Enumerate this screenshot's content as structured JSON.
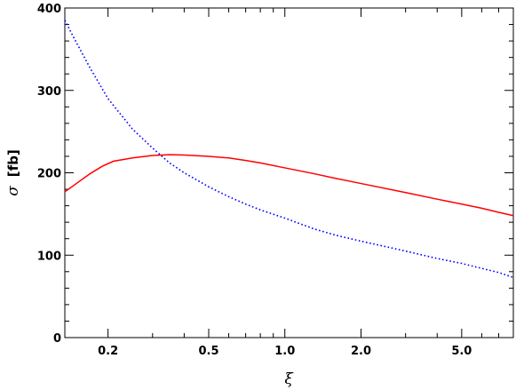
{
  "chart_data": {
    "type": "line",
    "xlabel": "ξ",
    "ylabel_symbol": "σ",
    "ylabel_unit": "[fb]",
    "xscale": "log",
    "xlim": [
      0.135,
      8.0
    ],
    "ylim": [
      0,
      400
    ],
    "grid": false,
    "x_ticks": [
      {
        "value": 0.2,
        "label": "0.2"
      },
      {
        "value": 0.5,
        "label": "0.5"
      },
      {
        "value": 1.0,
        "label": "1.0"
      },
      {
        "value": 2.0,
        "label": "2.0"
      },
      {
        "value": 5.0,
        "label": "5.0"
      }
    ],
    "x_minor_ticks": [
      0.3,
      0.4,
      0.6,
      0.7,
      0.8,
      0.9,
      3,
      4,
      6,
      7,
      8
    ],
    "y_ticks": [
      {
        "value": 0,
        "label": "0"
      },
      {
        "value": 100,
        "label": "100"
      },
      {
        "value": 200,
        "label": "200"
      },
      {
        "value": 300,
        "label": "300"
      },
      {
        "value": 400,
        "label": "400"
      }
    ],
    "y_minor_step": 20,
    "series": [
      {
        "color": "#ff0000",
        "style": "solid",
        "points": [
          [
            0.135,
            177
          ],
          [
            0.15,
            187
          ],
          [
            0.17,
            199
          ],
          [
            0.19,
            208
          ],
          [
            0.21,
            214
          ],
          [
            0.25,
            218
          ],
          [
            0.3,
            221
          ],
          [
            0.35,
            222
          ],
          [
            0.4,
            221.5
          ],
          [
            0.5,
            220
          ],
          [
            0.6,
            218
          ],
          [
            0.7,
            215
          ],
          [
            0.8,
            212
          ],
          [
            1.0,
            206
          ],
          [
            1.3,
            199
          ],
          [
            1.6,
            193
          ],
          [
            2.0,
            187
          ],
          [
            3.0,
            176
          ],
          [
            4.0,
            168
          ],
          [
            5.0,
            162
          ],
          [
            6.0,
            157
          ],
          [
            7.0,
            152
          ],
          [
            8.0,
            148
          ]
        ]
      },
      {
        "color": "#0000ff",
        "style": "dotted",
        "points": [
          [
            0.135,
            385
          ],
          [
            0.15,
            358
          ],
          [
            0.17,
            327
          ],
          [
            0.2,
            290
          ],
          [
            0.25,
            253
          ],
          [
            0.3,
            230
          ],
          [
            0.35,
            212
          ],
          [
            0.4,
            200
          ],
          [
            0.5,
            183
          ],
          [
            0.6,
            171
          ],
          [
            0.7,
            162
          ],
          [
            0.8,
            155
          ],
          [
            1.0,
            145
          ],
          [
            1.3,
            132
          ],
          [
            1.6,
            124
          ],
          [
            2.0,
            117
          ],
          [
            3.0,
            105
          ],
          [
            4.0,
            96
          ],
          [
            5.0,
            90
          ],
          [
            6.0,
            84
          ],
          [
            7.0,
            79
          ],
          [
            8.0,
            73
          ]
        ]
      }
    ]
  }
}
